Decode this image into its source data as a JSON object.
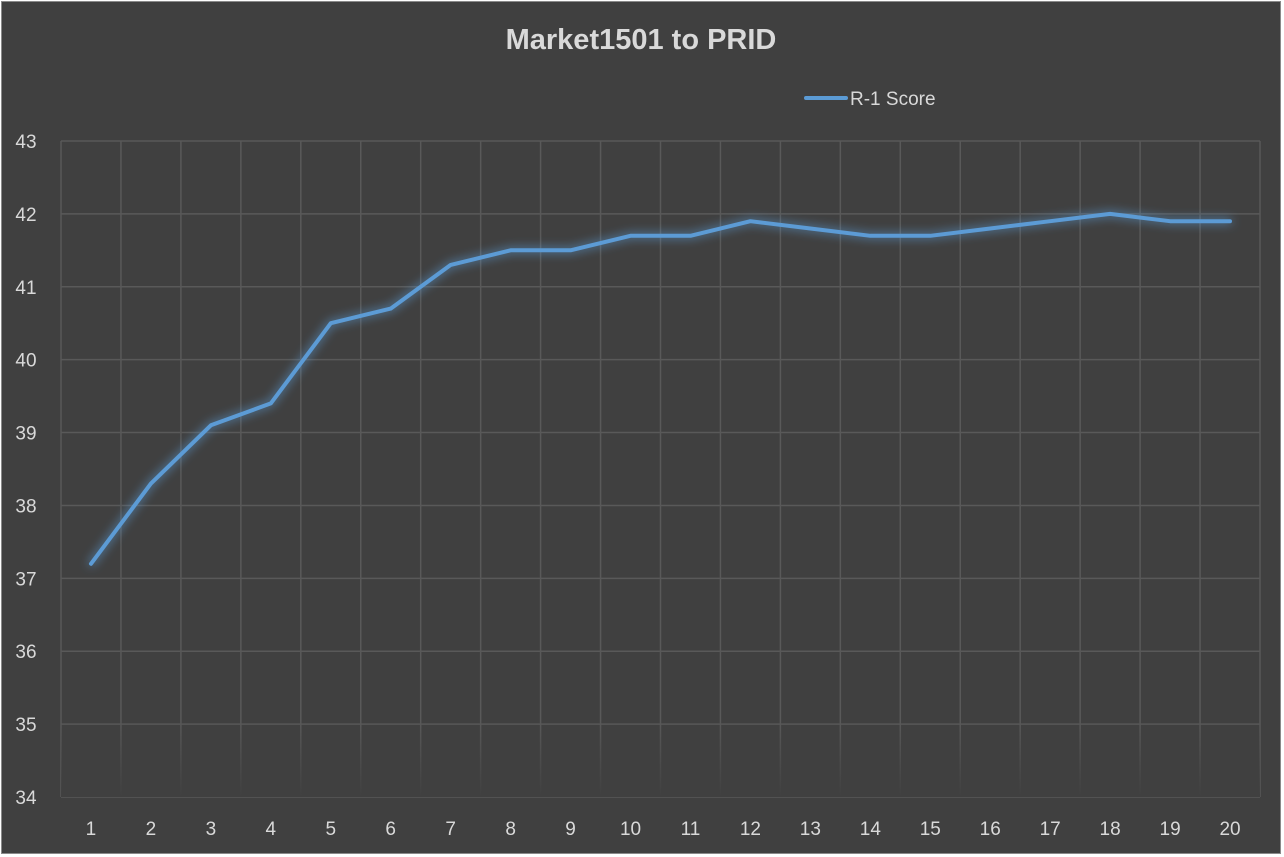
{
  "chart_data": {
    "type": "line",
    "title": "Market1501 to PRID",
    "xlabel": "",
    "ylabel": "",
    "categories": [
      "1",
      "2",
      "3",
      "4",
      "5",
      "6",
      "7",
      "8",
      "9",
      "10",
      "11",
      "12",
      "13",
      "14",
      "15",
      "16",
      "17",
      "18",
      "19",
      "20"
    ],
    "series": [
      {
        "name": "R-1 Score",
        "color": "#5b9bd5",
        "values": [
          37.2,
          38.3,
          39.1,
          39.4,
          40.5,
          40.7,
          41.3,
          41.5,
          41.5,
          41.7,
          41.7,
          41.9,
          41.8,
          41.7,
          41.7,
          41.8,
          41.9,
          42.0,
          41.9,
          41.9
        ]
      }
    ],
    "yticks": [
      "34",
      "35",
      "36",
      "37",
      "38",
      "39",
      "40",
      "41",
      "42",
      "43"
    ],
    "ylim": [
      34,
      43
    ],
    "grid": true,
    "legend_position": "top-right"
  },
  "colors": {
    "background": "#404040",
    "gridline": "#595959",
    "text": "#d9d9d9",
    "line": "#5b9bd5"
  }
}
